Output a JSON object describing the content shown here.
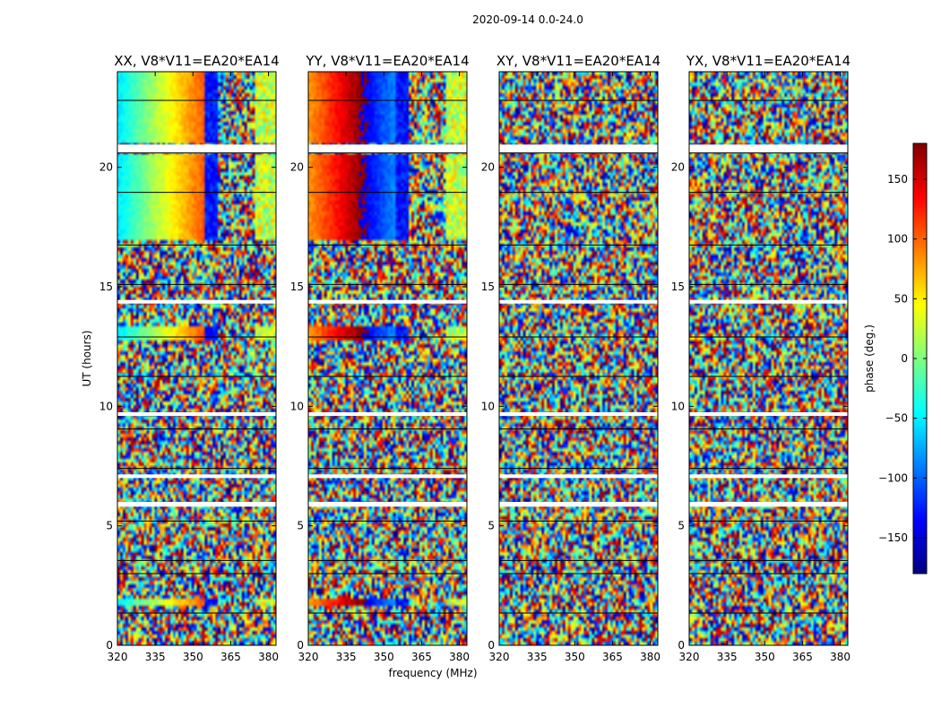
{
  "figure": {
    "suptitle": "2020-09-14 0.0-24.0"
  },
  "colors": {
    "jet": [
      "#00007f",
      "#0000ff",
      "#007fff",
      "#00ffff",
      "#7fff7f",
      "#ffff00",
      "#ff7f00",
      "#ff0000",
      "#7f0000"
    ],
    "flag_line": "#000000",
    "gap": "#ffffff"
  },
  "chart_data": {
    "type": "heatmap",
    "description_unit": "phase (deg.)",
    "panels": [
      {
        "title": "XX, V8*V11=EA20*EA14",
        "mode": "coherent"
      },
      {
        "title": "YY, V8*V11=EA20*EA14",
        "mode": "coherent"
      },
      {
        "title": "XY, V8*V11=EA20*EA14",
        "mode": "noise"
      },
      {
        "title": "YX, V8*V11=EA20*EA14",
        "mode": "noise"
      }
    ],
    "xlabel": "frequency (MHz)",
    "ylabel": "UT (hours)",
    "xlim": [
      320,
      383
    ],
    "ylim": [
      0,
      24
    ],
    "xticks": [
      320,
      335,
      350,
      365,
      380
    ],
    "yticks": [
      0,
      5,
      10,
      15,
      20
    ],
    "colorbar": {
      "label": "phase (deg.)",
      "range": [
        -180,
        180
      ],
      "ticks": [
        150,
        100,
        50,
        0,
        -50,
        -100,
        -150
      ],
      "tick_labels": [
        "150",
        "100",
        "50",
        "0",
        "−50",
        "−100",
        "−150"
      ]
    },
    "coherent_intervals_hours": [
      [
        17.0,
        20.5
      ],
      [
        21.0,
        24.0
      ],
      [
        12.8,
        13.4
      ],
      [
        1.7,
        2.0
      ]
    ],
    "flagged_gaps_hours": [
      [
        20.6,
        20.95
      ],
      [
        5.8,
        6.0
      ],
      [
        7.0,
        7.15
      ],
      [
        9.6,
        9.75
      ],
      [
        14.3,
        14.45
      ]
    ],
    "phase_wrap_start_mhz": 355,
    "phase_wrap_band_mhz": [
      360,
      375
    ]
  }
}
